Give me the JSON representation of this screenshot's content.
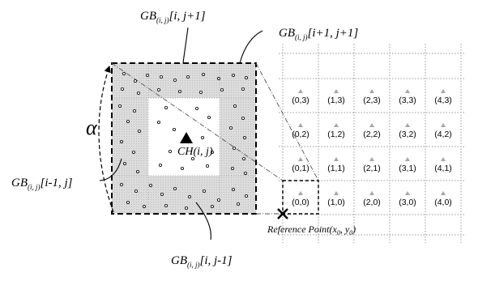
{
  "labels": {
    "gb_top": {
      "base": "GB",
      "sub": "(i, j)",
      "index": "[i, j+1]"
    },
    "gb_topright": {
      "base": "GB",
      "sub": "(i, j)",
      "index": "[i+1, j+1]"
    },
    "gb_left": {
      "base": "GB",
      "sub": "(i, j)",
      "index": "[i-1, j]"
    },
    "gb_bottom": {
      "base": "GB",
      "sub": "(i, j)",
      "index": "[i, j-1]"
    },
    "alpha": "α",
    "cluster_head": "CH(i, j)",
    "reference_point": {
      "prefix": "Reference Point(x",
      "sub0": "0",
      "mid": ", y",
      "sub1": "0",
      "suffix": ")"
    }
  },
  "grid": {
    "cells": [
      {
        "label": "(0,3)"
      },
      {
        "label": "(1,3)"
      },
      {
        "label": "(2,3)"
      },
      {
        "label": "(3,3)"
      },
      {
        "label": "(4,3)"
      },
      {
        "label": "(0,2)"
      },
      {
        "label": "(1,2)"
      },
      {
        "label": "(2,2)"
      },
      {
        "label": "(3,2)"
      },
      {
        "label": "(4,2)"
      },
      {
        "label": "(0,1)"
      },
      {
        "label": "(1,1)"
      },
      {
        "label": "(2,1)"
      },
      {
        "label": "(3,1)"
      },
      {
        "label": "(4,1)"
      },
      {
        "label": "(0,0)"
      },
      {
        "label": "(1,0)"
      },
      {
        "label": "(2,0)"
      },
      {
        "label": "(3,0)"
      },
      {
        "label": "(4,0)"
      }
    ]
  },
  "colors": {
    "border_region": "#d4d4d4",
    "center_region": "#ffffff",
    "grid_line": "#9a9a9a",
    "node_triangle": "#a6a6a6",
    "line": "#000000"
  }
}
